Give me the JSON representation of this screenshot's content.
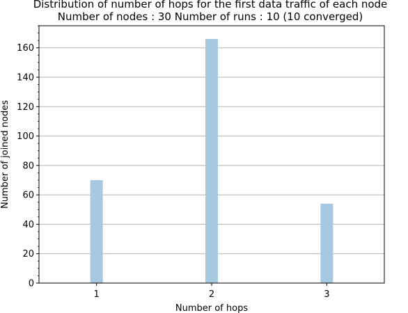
{
  "chart_data": {
    "type": "bar",
    "title_lines": [
      "Distribution of number of hops for the first data traffic of each node",
      "Number of nodes : 30   Number of runs : 10 (10 converged)"
    ],
    "xlabel": "Number of hops",
    "ylabel": "Number of joined nodes",
    "categories": [
      "1",
      "2",
      "3"
    ],
    "x": [
      1,
      2,
      3
    ],
    "values": [
      70,
      166,
      54
    ],
    "xlim": [
      0.5,
      3.5
    ],
    "ylim": [
      0,
      175
    ],
    "yticks": [
      0,
      20,
      40,
      60,
      80,
      100,
      120,
      140,
      160
    ],
    "y_tick_labels": [
      "0",
      "20",
      "40",
      "60",
      "80",
      "100",
      "120",
      "140",
      "160"
    ],
    "grid": "horizontal",
    "bar_color": "#a6c8e0",
    "grid_color": "#b0b0b0",
    "axis_color": "#000000"
  }
}
